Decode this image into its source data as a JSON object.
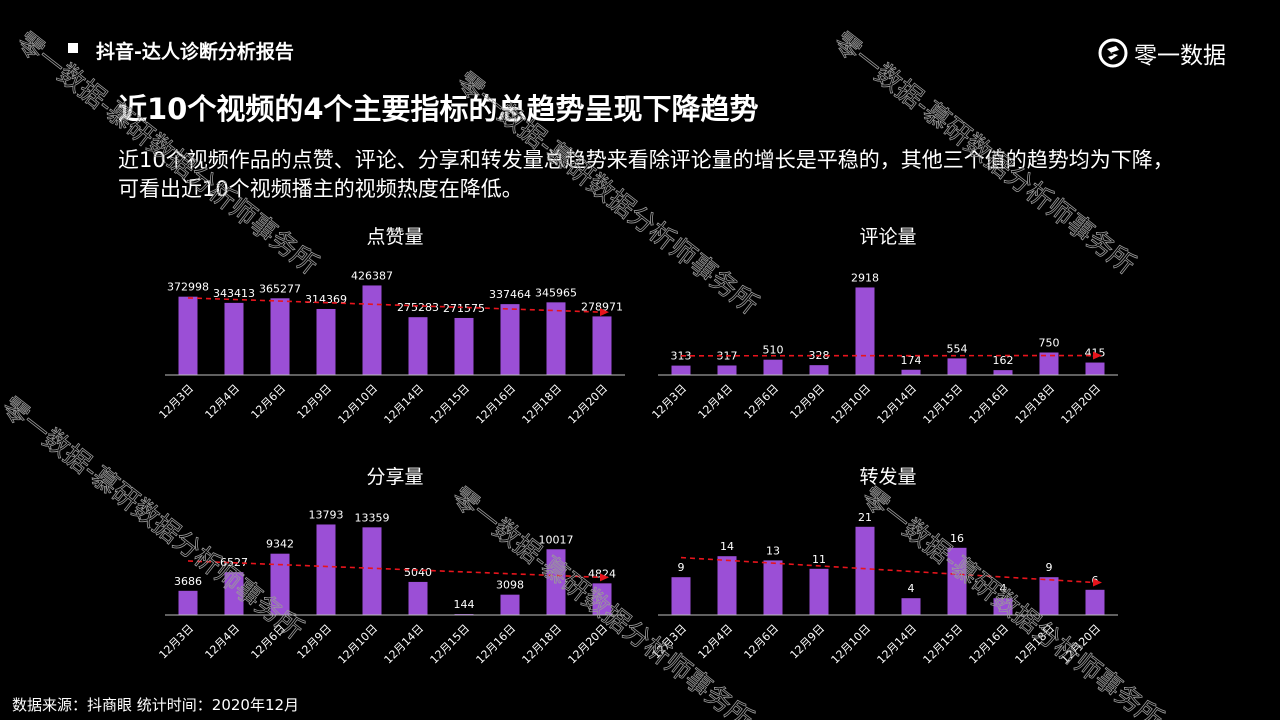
{
  "header": {
    "title": "抖音-达人诊断分析报告",
    "logo_text": "零一数据"
  },
  "main_title": "近10个视频的4个主要指标的总趋势呈现下降趋势",
  "summary": "近10个视频作品的点赞、评论、分享和转发量总趋势来看除评论量的增长是平稳的，其他三个值的趋势均为下降，可看出近10个视频播主的视频热度在降低。",
  "footer": "数据来源：抖商眼 统计时间：2020年12月",
  "watermark": "零一数据-慕研数据分析师事务所",
  "colors": {
    "bar": "#9b4fd6",
    "trend": "#e8141c",
    "axis": "#bfbfbf"
  },
  "chart_data": [
    {
      "type": "bar",
      "title": "点赞量",
      "categories": [
        "12月3日",
        "12月4日",
        "12月6日",
        "12月9日",
        "12月10日",
        "12月14日",
        "12月15日",
        "12月16日",
        "12月18日",
        "12月20日"
      ],
      "values": [
        372998,
        343413,
        365277,
        314369,
        426387,
        275283,
        271575,
        337464,
        345965,
        278971
      ],
      "trendline": "linear",
      "ylim": [
        0,
        500000
      ]
    },
    {
      "type": "bar",
      "title": "评论量",
      "categories": [
        "12月3日",
        "12月4日",
        "12月6日",
        "12月9日",
        "12月10日",
        "12月14日",
        "12月15日",
        "12月16日",
        "12月18日",
        "12月20日"
      ],
      "values": [
        313,
        317,
        510,
        328,
        2918,
        174,
        554,
        162,
        750,
        415
      ],
      "trendline": "linear",
      "ylim": [
        0,
        3500
      ]
    },
    {
      "type": "bar",
      "title": "分享量",
      "categories": [
        "12月3日",
        "12月4日",
        "12月6日",
        "12月9日",
        "12月10日",
        "12月14日",
        "12月15日",
        "12月16日",
        "12月18日",
        "12月20日"
      ],
      "values": [
        3686,
        6527,
        9342,
        13793,
        13359,
        5040,
        144,
        3098,
        10017,
        4824
      ],
      "trendline": "linear",
      "ylim": [
        0,
        16000
      ]
    },
    {
      "type": "bar",
      "title": "转发量",
      "categories": [
        "12月3日",
        "12月4日",
        "12月6日",
        "12月9日",
        "12月10日",
        "12月14日",
        "12月15日",
        "12月16日",
        "12月18日",
        "12月20日"
      ],
      "values": [
        9,
        14,
        13,
        11,
        21,
        4,
        16,
        4,
        9,
        6
      ],
      "trendline": "linear",
      "ylim": [
        0,
        25
      ]
    }
  ]
}
